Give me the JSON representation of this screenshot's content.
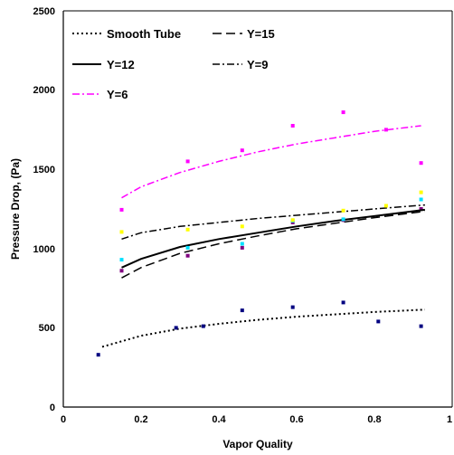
{
  "chart_data": {
    "type": "scatter",
    "title": "",
    "xlabel": "Vapor Quality",
    "ylabel": "Pressure Drop, (Pa)",
    "xlim": [
      0,
      1
    ],
    "ylim": [
      0,
      2500
    ],
    "x_ticks": [
      "0",
      "0.2",
      "0.4",
      "0.6",
      "0.8",
      "1"
    ],
    "y_ticks": [
      "0",
      "500",
      "1000",
      "1500",
      "2000",
      "2500"
    ],
    "grid": false,
    "legend_position": "top-left",
    "series": [
      {
        "name": "Smooth Tube",
        "color": "#000000",
        "marker_color": "#000080",
        "dash": "dotted",
        "points": [
          [
            0.09,
            330
          ],
          [
            0.29,
            500
          ],
          [
            0.36,
            510
          ],
          [
            0.46,
            610
          ],
          [
            0.59,
            630
          ],
          [
            0.72,
            660
          ],
          [
            0.81,
            540
          ],
          [
            0.92,
            510
          ]
        ],
        "fit": [
          [
            0.1,
            380
          ],
          [
            0.2,
            450
          ],
          [
            0.3,
            495
          ],
          [
            0.4,
            525
          ],
          [
            0.5,
            550
          ],
          [
            0.6,
            570
          ],
          [
            0.7,
            585
          ],
          [
            0.8,
            600
          ],
          [
            0.93,
            615
          ]
        ]
      },
      {
        "name": "Y=15",
        "color": "#000000",
        "marker_color": "#800080",
        "dash": "long-dash",
        "points": [
          [
            0.15,
            860
          ],
          [
            0.32,
            955
          ],
          [
            0.46,
            1005
          ],
          [
            0.59,
            1165
          ],
          [
            0.72,
            1180
          ],
          [
            0.92,
            1250
          ]
        ],
        "fit": [
          [
            0.15,
            815
          ],
          [
            0.2,
            880
          ],
          [
            0.3,
            970
          ],
          [
            0.4,
            1030
          ],
          [
            0.5,
            1080
          ],
          [
            0.6,
            1125
          ],
          [
            0.7,
            1160
          ],
          [
            0.8,
            1195
          ],
          [
            0.93,
            1235
          ]
        ]
      },
      {
        "name": "Y=12",
        "color": "#000000",
        "marker_color": "#00e0ff",
        "dash": "solid",
        "points": [
          [
            0.15,
            930
          ],
          [
            0.32,
            1005
          ],
          [
            0.46,
            1030
          ],
          [
            0.59,
            1175
          ],
          [
            0.72,
            1185
          ],
          [
            0.92,
            1310
          ]
        ],
        "fit": [
          [
            0.15,
            880
          ],
          [
            0.2,
            935
          ],
          [
            0.3,
            1010
          ],
          [
            0.4,
            1060
          ],
          [
            0.5,
            1100
          ],
          [
            0.6,
            1140
          ],
          [
            0.7,
            1175
          ],
          [
            0.8,
            1205
          ],
          [
            0.93,
            1245
          ]
        ]
      },
      {
        "name": "Y=9",
        "color": "#000000",
        "marker_color": "#ffff00",
        "dash": "dash-dot",
        "points": [
          [
            0.15,
            1105
          ],
          [
            0.32,
            1120
          ],
          [
            0.46,
            1140
          ],
          [
            0.59,
            1180
          ],
          [
            0.72,
            1240
          ],
          [
            0.83,
            1270
          ],
          [
            0.92,
            1355
          ]
        ],
        "fit": [
          [
            0.15,
            1060
          ],
          [
            0.2,
            1100
          ],
          [
            0.3,
            1140
          ],
          [
            0.4,
            1165
          ],
          [
            0.5,
            1190
          ],
          [
            0.6,
            1210
          ],
          [
            0.7,
            1230
          ],
          [
            0.8,
            1250
          ],
          [
            0.93,
            1275
          ]
        ]
      },
      {
        "name": "Y=6",
        "color": "#ff00ff",
        "marker_color": "#ff00ff",
        "dash": "dash-dot",
        "points": [
          [
            0.15,
            1245
          ],
          [
            0.32,
            1550
          ],
          [
            0.46,
            1620
          ],
          [
            0.59,
            1775
          ],
          [
            0.72,
            1860
          ],
          [
            0.83,
            1750
          ],
          [
            0.92,
            1540
          ]
        ],
        "fit": [
          [
            0.15,
            1320
          ],
          [
            0.2,
            1390
          ],
          [
            0.3,
            1480
          ],
          [
            0.4,
            1550
          ],
          [
            0.5,
            1610
          ],
          [
            0.6,
            1660
          ],
          [
            0.7,
            1700
          ],
          [
            0.8,
            1740
          ],
          [
            0.92,
            1775
          ]
        ]
      }
    ]
  }
}
